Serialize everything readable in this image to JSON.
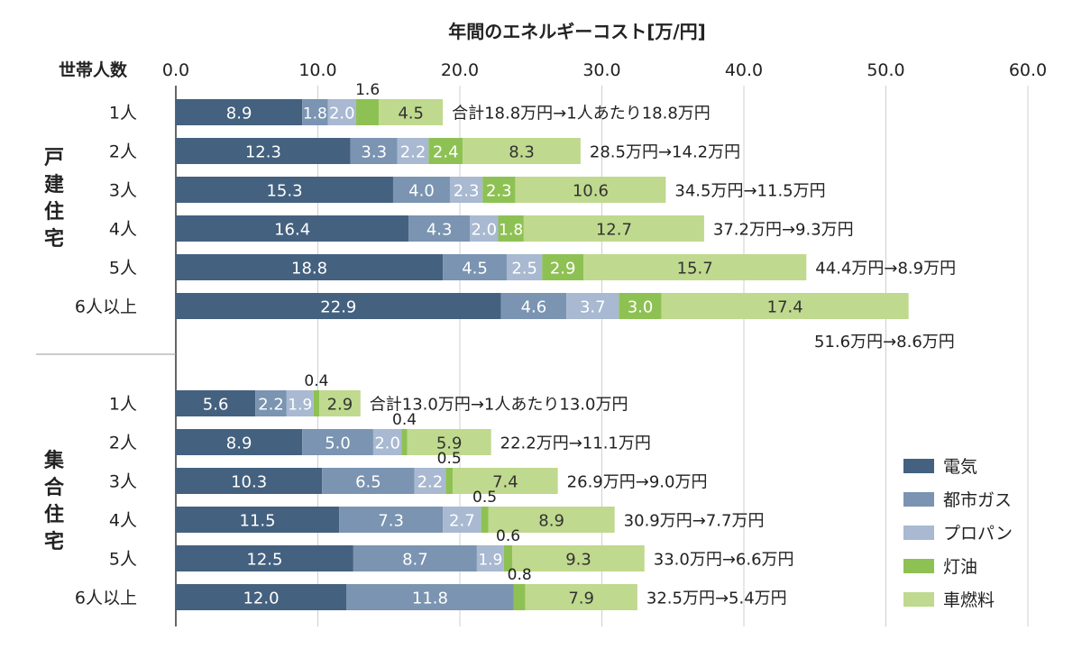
{
  "chart_data": {
    "type": "bar",
    "orientation": "horizontal",
    "stacked": true,
    "title": "年間のエネルギーコスト[万/円]",
    "row_header": "世帯人数",
    "xlim": [
      0,
      60
    ],
    "xticks": [
      "0.0",
      "10.0",
      "20.0",
      "30.0",
      "40.0",
      "50.0",
      "60.0"
    ],
    "grid": true,
    "legend_position": "bottom-right",
    "legend": [
      "電気",
      "都市ガス",
      "プロパン",
      "灯油",
      "車燃料"
    ],
    "colors": [
      "#44617f",
      "#7a94b1",
      "#a8b9d1",
      "#8ec153",
      "#bfd98e"
    ],
    "label_colors": [
      "#ffffff",
      "#ffffff",
      "#ffffff",
      "#ffffff",
      "#333333"
    ],
    "groups": [
      {
        "name": "戸建住宅",
        "rows": [
          {
            "label": "1人",
            "values": [
              8.9,
              1.8,
              2.0,
              1.6,
              4.5
            ],
            "summary": "合計18.8万円→1人あたり18.8万円"
          },
          {
            "label": "2人",
            "values": [
              12.3,
              3.3,
              2.2,
              2.4,
              8.3
            ],
            "summary": "28.5万円→14.2万円"
          },
          {
            "label": "3人",
            "values": [
              15.3,
              4.0,
              2.3,
              2.3,
              10.6
            ],
            "summary": "34.5万円→11.5万円"
          },
          {
            "label": "4人",
            "values": [
              16.4,
              4.3,
              2.0,
              1.8,
              12.7
            ],
            "summary": "37.2万円→9.3万円"
          },
          {
            "label": "5人",
            "values": [
              18.8,
              4.5,
              2.5,
              2.9,
              15.7
            ],
            "summary": "44.4万円→8.9万円"
          },
          {
            "label": "6人以上",
            "values": [
              22.9,
              4.6,
              3.7,
              3.0,
              17.4
            ],
            "summary": "51.6万円→8.6万円"
          }
        ]
      },
      {
        "name": "集合住宅",
        "rows": [
          {
            "label": "1人",
            "values": [
              5.6,
              2.2,
              1.9,
              0.4,
              2.9
            ],
            "summary": "合計13.0万円→1人あたり13.0万円"
          },
          {
            "label": "2人",
            "values": [
              8.9,
              5.0,
              2.0,
              0.4,
              5.9
            ],
            "summary": "22.2万円→11.1万円"
          },
          {
            "label": "3人",
            "values": [
              10.3,
              6.5,
              2.2,
              0.5,
              7.4
            ],
            "summary": "26.9万円→9.0万円"
          },
          {
            "label": "4人",
            "values": [
              11.5,
              7.3,
              2.7,
              0.5,
              8.9
            ],
            "summary": "30.9万円→7.7万円"
          },
          {
            "label": "5人",
            "values": [
              12.5,
              8.7,
              1.9,
              0.6,
              9.3
            ],
            "summary": "33.0万円→6.6万円"
          },
          {
            "label": "6人以上",
            "values": [
              12.0,
              11.8,
              0.0,
              0.8,
              7.9
            ],
            "summary": "32.5万円→5.4万円"
          }
        ]
      }
    ]
  }
}
